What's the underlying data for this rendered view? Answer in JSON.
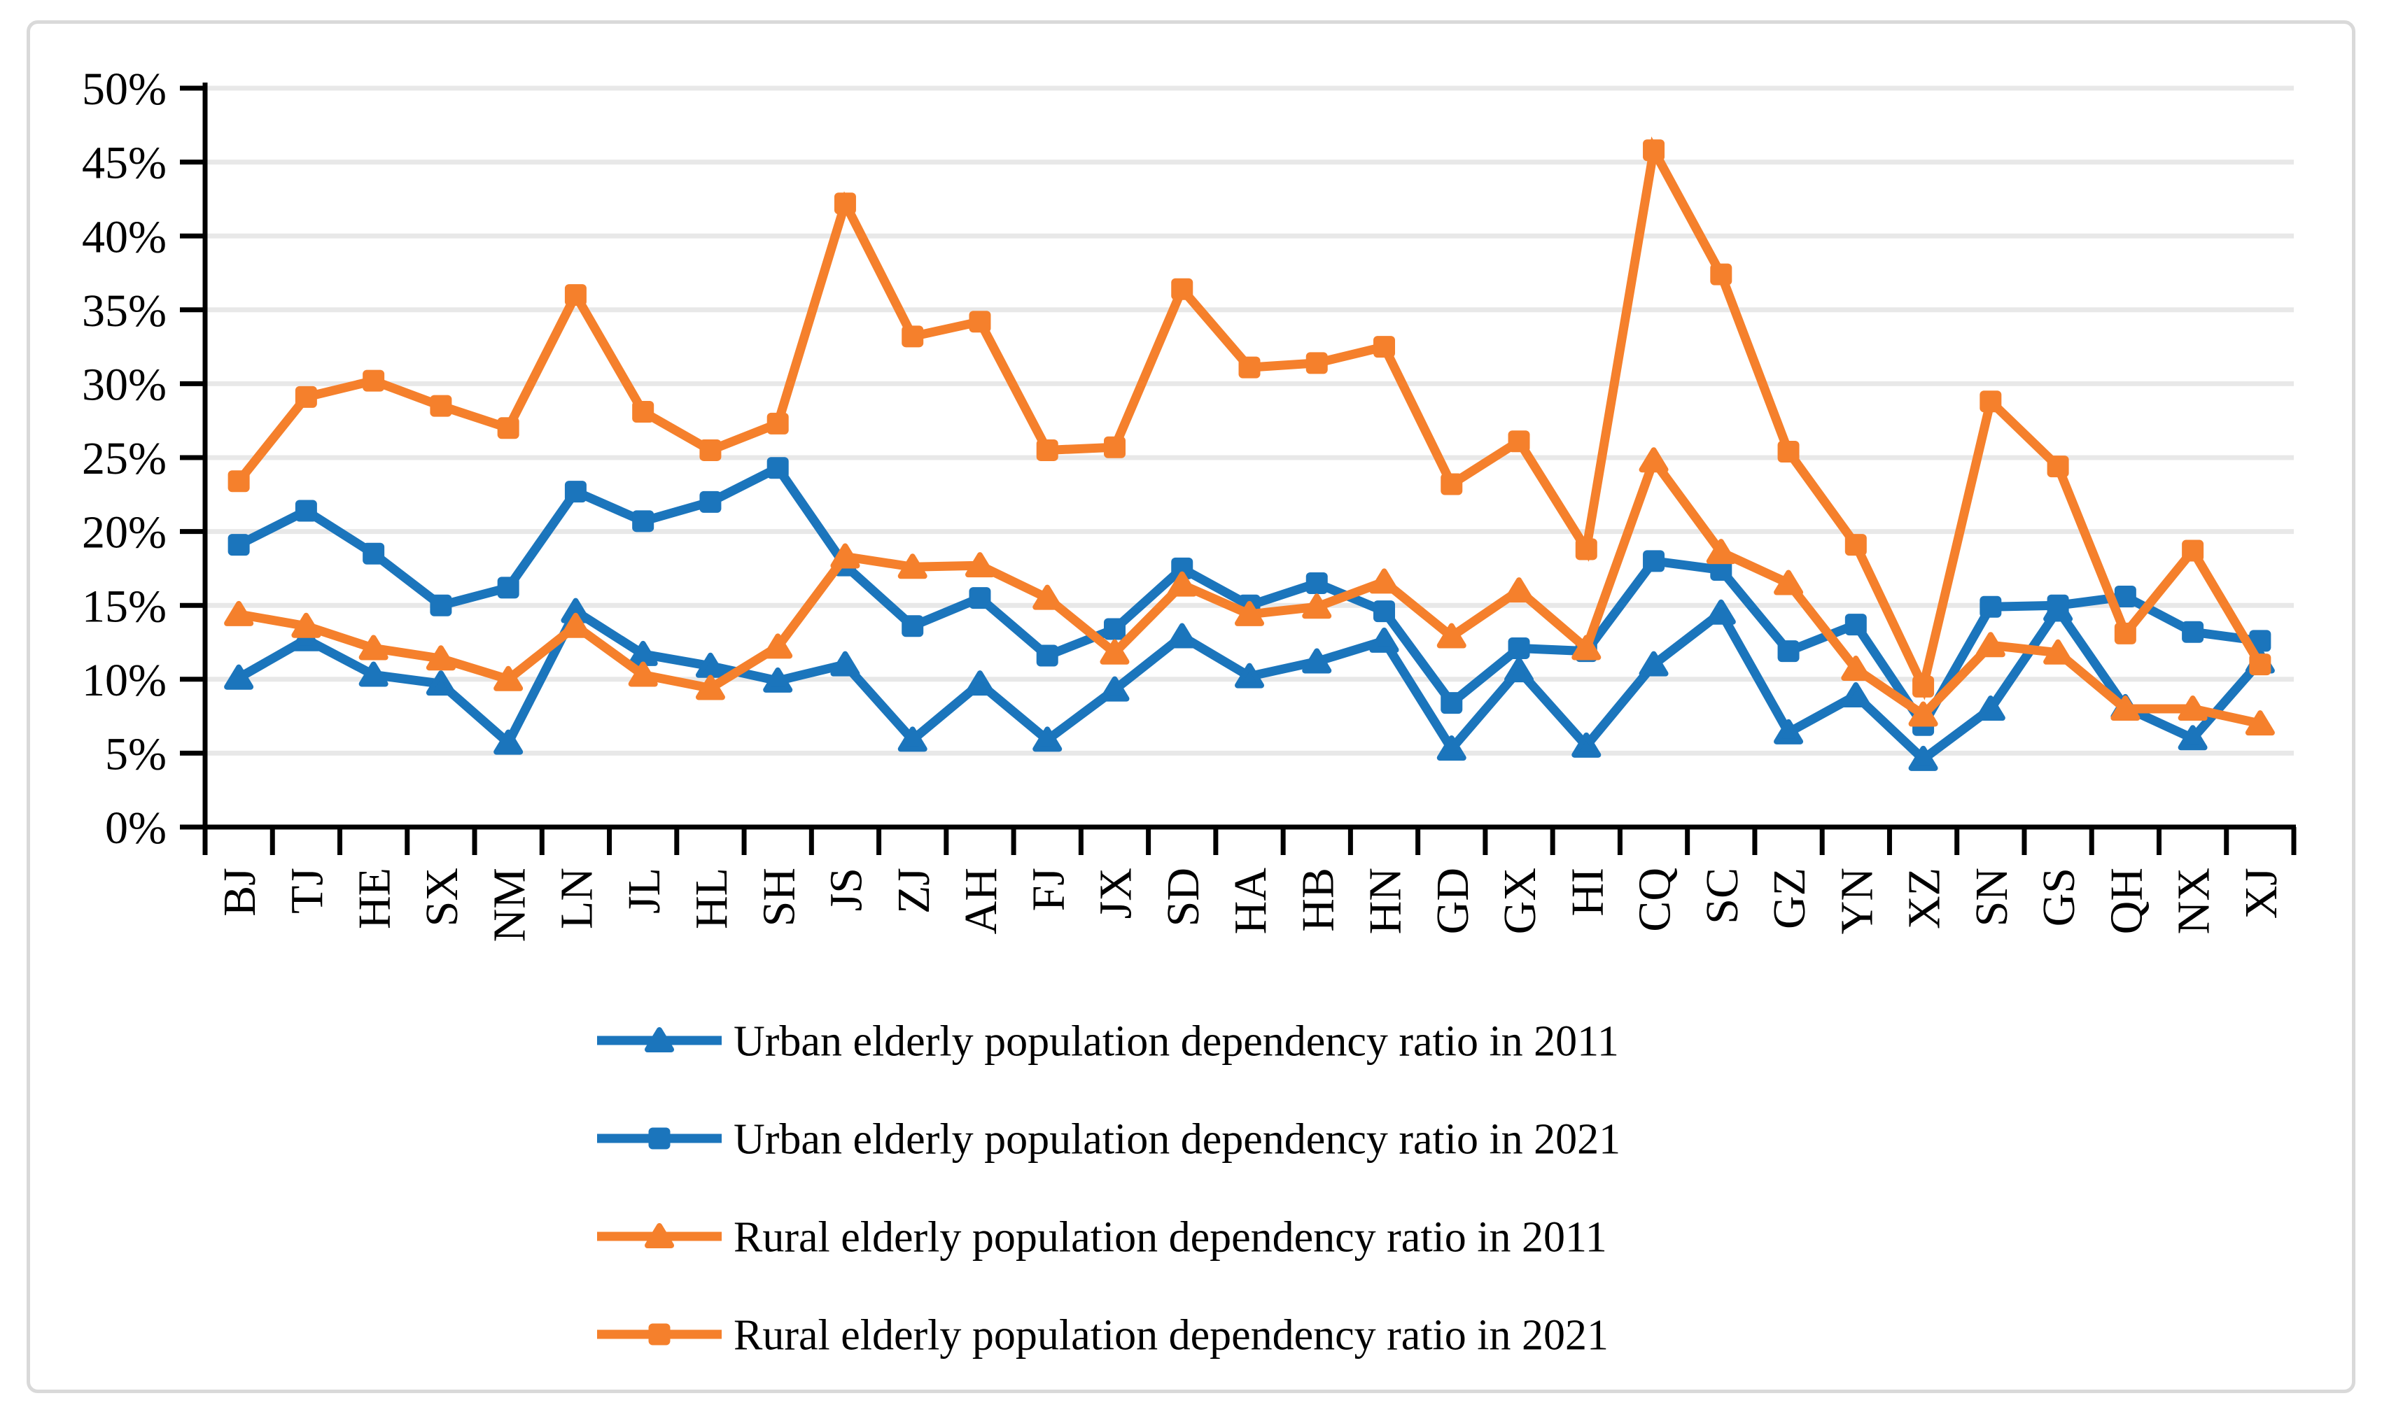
{
  "page": {
    "background_color": "#ffffff",
    "frame_color": "#d9d9d9"
  },
  "chart_data": {
    "type": "line",
    "title": "",
    "xlabel": "",
    "ylabel": "",
    "grid": "horizontal-only",
    "gridline_color": "#e8e8e8",
    "axis_color": "#000000",
    "plot_background": "#ffffff",
    "legend_position": "bottom",
    "y_axis": {
      "min": 0,
      "max": 50,
      "step": 5,
      "unit": "%",
      "tick_labels": [
        "0%",
        "5%",
        "10%",
        "15%",
        "20%",
        "25%",
        "30%",
        "35%",
        "40%",
        "45%",
        "50%"
      ]
    },
    "categories": [
      "BJ",
      "TJ",
      "HE",
      "SX",
      "NM",
      "LN",
      "JL",
      "HL",
      "SH",
      "JS",
      "ZJ",
      "AH",
      "FJ",
      "JX",
      "SD",
      "HA",
      "HB",
      "HN",
      "GD",
      "GX",
      "HI",
      "CQ",
      "SC",
      "GZ",
      "YN",
      "XZ",
      "SN",
      "GS",
      "QH",
      "NX",
      "XJ"
    ],
    "series": [
      {
        "name": "Urban elderly population dependency ratio in 2011",
        "color": "#1b75bc",
        "marker": "triangle",
        "values": [
          10.1,
          12.7,
          10.3,
          9.7,
          5.7,
          14.6,
          11.7,
          10.9,
          9.9,
          11.0,
          5.9,
          9.7,
          5.9,
          9.3,
          12.9,
          10.2,
          11.2,
          12.6,
          5.3,
          10.6,
          5.5,
          11.0,
          14.5,
          6.4,
          8.9,
          4.6,
          8.0,
          14.7,
          8.1,
          6.0,
          11.2
        ]
      },
      {
        "name": "Urban elderly population dependency ratio in 2021",
        "color": "#1b75bc",
        "marker": "square",
        "values": [
          19.1,
          21.4,
          18.5,
          15.0,
          16.2,
          22.7,
          20.7,
          22.0,
          24.3,
          17.7,
          13.6,
          15.5,
          11.6,
          13.4,
          17.5,
          15.0,
          16.5,
          14.6,
          8.4,
          12.1,
          11.9,
          18.0,
          17.4,
          11.9,
          13.7,
          6.9,
          14.9,
          15.0,
          15.6,
          13.2,
          12.6
        ]
      },
      {
        "name": "Rural elderly population dependency ratio in 2011",
        "color": "#f5802c",
        "marker": "triangle",
        "values": [
          14.4,
          13.6,
          12.1,
          11.4,
          10.0,
          13.6,
          10.3,
          9.4,
          12.2,
          18.3,
          17.6,
          17.7,
          15.5,
          11.8,
          16.4,
          14.4,
          14.9,
          16.6,
          12.9,
          16.0,
          12.1,
          24.8,
          18.6,
          16.5,
          10.7,
          7.6,
          12.3,
          11.8,
          8.0,
          8.0,
          7.0
        ]
      },
      {
        "name": "Rural elderly population dependency ratio in 2021",
        "color": "#f5802c",
        "marker": "square",
        "values": [
          23.4,
          29.1,
          30.2,
          28.5,
          27.0,
          36.0,
          28.1,
          25.5,
          27.3,
          42.2,
          33.2,
          34.2,
          25.5,
          25.7,
          36.4,
          31.1,
          31.4,
          32.5,
          23.2,
          26.1,
          18.8,
          45.8,
          37.4,
          25.4,
          19.1,
          9.5,
          28.8,
          24.4,
          13.1,
          18.7,
          11.0
        ]
      }
    ]
  }
}
